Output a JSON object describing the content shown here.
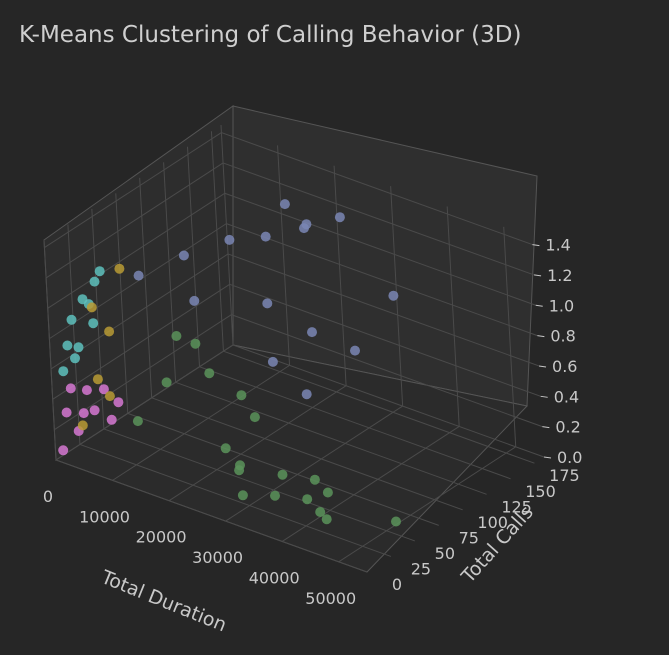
{
  "chart_data": {
    "type": "scatter",
    "projection": "3d",
    "title": "K-Means Clustering of Calling Behavior (3D)",
    "xlabel": "Total Duration",
    "ylabel": "Total Calls",
    "zlabel": "",
    "x_ticks": [
      "0",
      "10000",
      "20000",
      "30000",
      "40000",
      "50000"
    ],
    "y_ticks": [
      "0",
      "25",
      "50",
      "75",
      "100",
      "125",
      "150",
      "175"
    ],
    "z_ticks": [
      "0.0",
      "0.2",
      "0.4",
      "0.6",
      "0.8",
      "1.0",
      "1.2",
      "1.4"
    ],
    "xlim": [
      0,
      55000
    ],
    "ylim": [
      0,
      185
    ],
    "zlim": [
      0,
      1.45
    ],
    "grid": true,
    "legend": "none",
    "background": "#262626",
    "series": [
      {
        "color": "#d678d2",
        "points": [
          [
            500,
            5,
            0.05
          ],
          [
            800,
            20,
            0.12
          ],
          [
            1200,
            35,
            0.2
          ],
          [
            600,
            10,
            0.28
          ],
          [
            1500,
            50,
            0.08
          ],
          [
            900,
            30,
            0.35
          ],
          [
            1100,
            60,
            0.15
          ],
          [
            700,
            15,
            0.42
          ],
          [
            1300,
            45,
            0.3
          ],
          [
            1000,
            25,
            0.22
          ]
        ]
      },
      {
        "color": "#5ec1bd",
        "points": [
          [
            400,
            10,
            0.55
          ],
          [
            700,
            25,
            0.65
          ],
          [
            900,
            40,
            0.75
          ],
          [
            600,
            20,
            0.85
          ],
          [
            1000,
            30,
            0.95
          ],
          [
            800,
            50,
            1.05
          ],
          [
            500,
            15,
            0.7
          ],
          [
            1200,
            35,
            0.9
          ],
          [
            650,
            45,
            1.0
          ],
          [
            850,
            20,
            0.6
          ]
        ]
      },
      {
        "color": "#b89b35",
        "points": [
          [
            2500,
            15,
            0.2
          ],
          [
            3000,
            30,
            0.45
          ],
          [
            2800,
            45,
            0.7
          ],
          [
            3500,
            25,
            0.95
          ],
          [
            2600,
            60,
            1.05
          ],
          [
            3200,
            40,
            0.3
          ]
        ]
      },
      {
        "color": "#7a86b4",
        "points": [
          [
            6000,
            60,
            1.05
          ],
          [
            9000,
            90,
            1.1
          ],
          [
            12000,
            120,
            1.12
          ],
          [
            15000,
            140,
            1.1
          ],
          [
            18000,
            165,
            1.12
          ],
          [
            22000,
            140,
            1.25
          ],
          [
            25000,
            160,
            1.28
          ],
          [
            20000,
            110,
            0.85
          ],
          [
            26000,
            120,
            0.7
          ],
          [
            30000,
            140,
            0.55
          ],
          [
            28000,
            100,
            0.4
          ],
          [
            14000,
            70,
            0.95
          ],
          [
            24000,
            90,
            0.6
          ],
          [
            33000,
            165,
            0.85
          ],
          [
            17000,
            150,
            1.3
          ]
        ]
      },
      {
        "color": "#5a935a",
        "points": [
          [
            8000,
            40,
            0.2
          ],
          [
            10000,
            60,
            0.4
          ],
          [
            12000,
            80,
            0.6
          ],
          [
            14000,
            50,
            0.8
          ],
          [
            16000,
            70,
            0.5
          ],
          [
            18000,
            90,
            0.3
          ],
          [
            20000,
            60,
            0.1
          ],
          [
            22000,
            80,
            0.25
          ],
          [
            24000,
            50,
            0.05
          ],
          [
            26000,
            40,
            0.15
          ],
          [
            28000,
            30,
            0.02
          ],
          [
            30000,
            60,
            0.06
          ],
          [
            32000,
            40,
            0.03
          ],
          [
            34000,
            70,
            0.04
          ],
          [
            36000,
            50,
            0.02
          ],
          [
            38000,
            60,
            0.05
          ],
          [
            40000,
            40,
            0.03
          ],
          [
            42000,
            35,
            0.03
          ],
          [
            50000,
            60,
            0.02
          ]
        ]
      }
    ]
  }
}
